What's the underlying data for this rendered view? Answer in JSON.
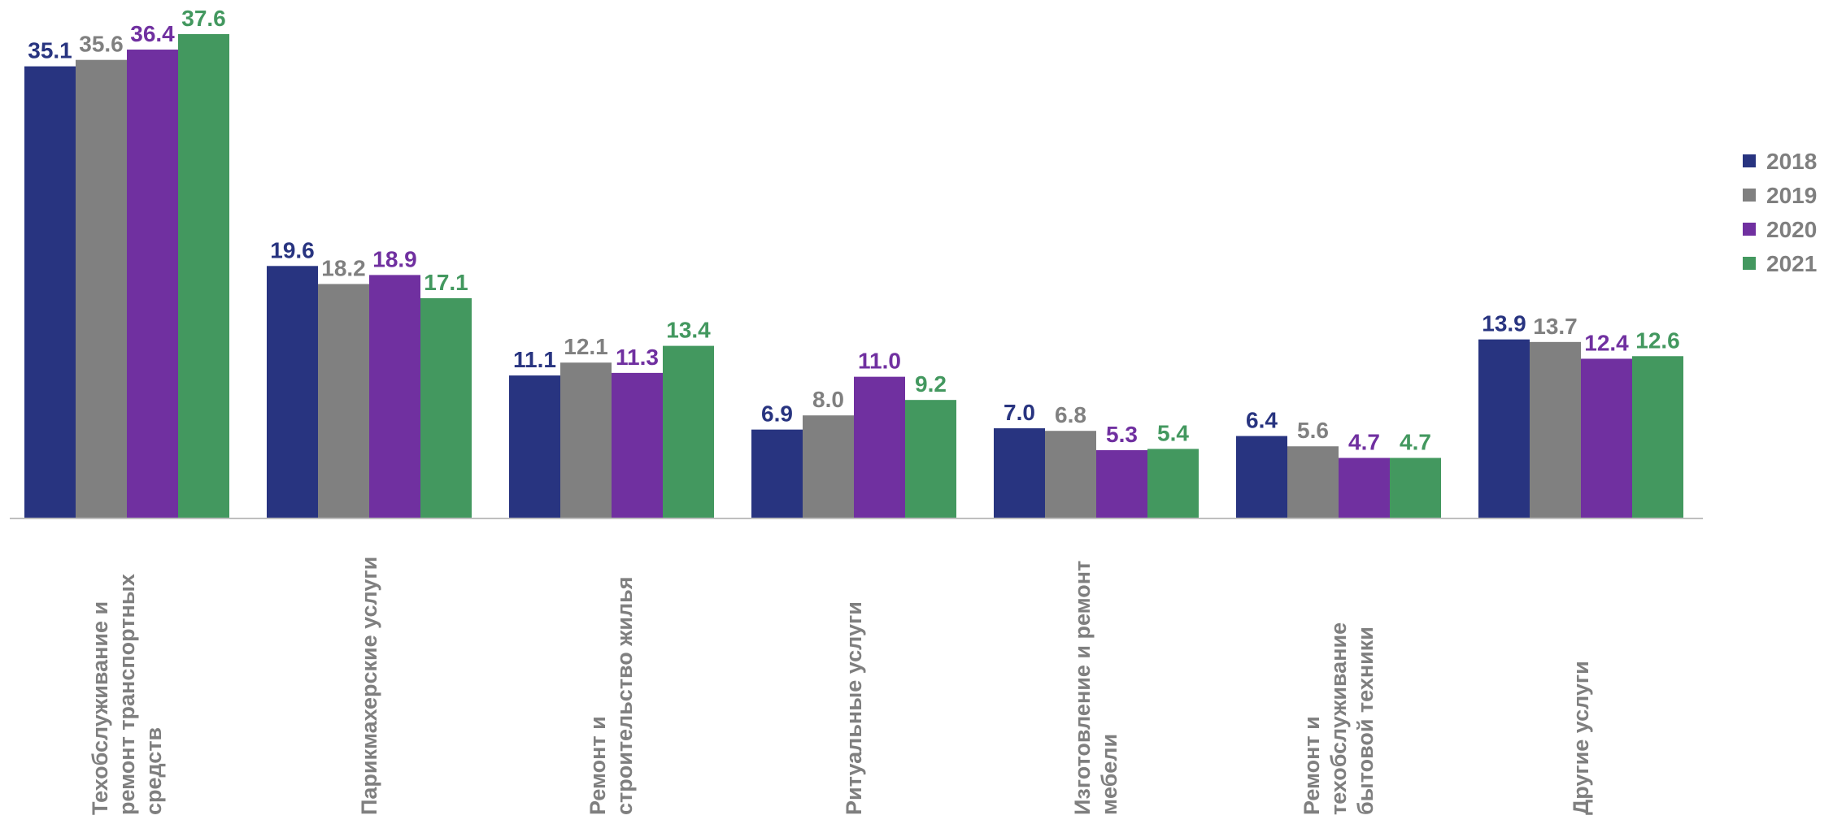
{
  "chart_data": {
    "type": "bar",
    "categories": [
      "Техобслуживание и ремонт транспортных средств",
      "Парикмахерские услуги",
      "Ремонт и строительство жилья",
      "Ритуальные услуги",
      "Изготовление и ремонт мебели",
      "Ремонт и техобслуживание бытовой техники",
      "Другие услуги"
    ],
    "series": [
      {
        "name": "2018",
        "color": "#283480",
        "values": [
          35.1,
          19.6,
          11.1,
          6.9,
          7.0,
          6.4,
          13.9
        ],
        "value_labels": [
          "35.1",
          "19.6",
          "11.1",
          "6.9",
          "7.0",
          "6.4",
          "13.9"
        ]
      },
      {
        "name": "2019",
        "color": "#808080",
        "values": [
          35.6,
          18.2,
          12.1,
          8.0,
          6.8,
          5.6,
          13.7
        ],
        "value_labels": [
          "35.6",
          "18.2",
          "12.1",
          "8.0",
          "6.8",
          "5.6",
          "13.7"
        ]
      },
      {
        "name": "2020",
        "color": "#7030a0",
        "values": [
          36.4,
          18.9,
          11.3,
          11.0,
          5.3,
          4.7,
          12.4
        ],
        "value_labels": [
          "36.4",
          "18.9",
          "11.3",
          "11.0",
          "5.3",
          "4.7",
          "12.4"
        ]
      },
      {
        "name": "2021",
        "color": "#43985f",
        "values": [
          37.6,
          17.1,
          13.4,
          9.2,
          5.4,
          4.7,
          12.6
        ],
        "value_labels": [
          "37.6",
          "17.1",
          "13.4",
          "9.2",
          "5.4",
          "4.7",
          "12.6"
        ]
      }
    ],
    "legend": "right"
  }
}
